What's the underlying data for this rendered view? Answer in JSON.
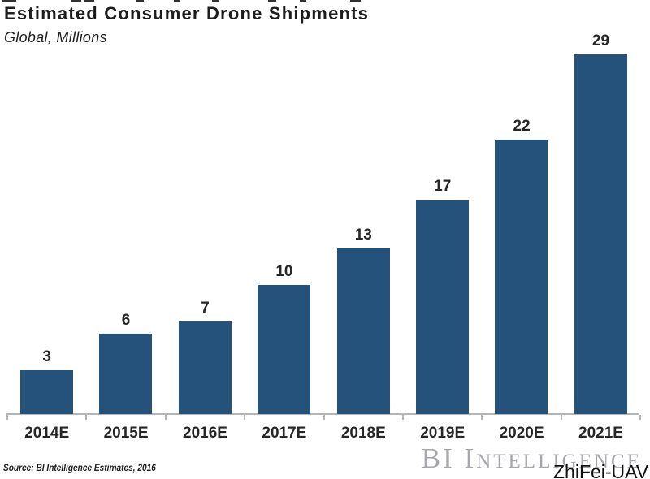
{
  "chart_data": {
    "type": "bar",
    "title": "Estimated Consumer Drone Shipments",
    "subtitle": "Global, Millions",
    "categories": [
      "2014E",
      "2015E",
      "2016E",
      "2017E",
      "2018E",
      "2019E",
      "2020E",
      "2021E"
    ],
    "values": [
      3,
      6,
      7,
      10,
      13,
      17,
      22,
      29
    ],
    "xlabel": "",
    "ylabel": "",
    "ylim": [
      0,
      30
    ],
    "grid": false,
    "legend": false,
    "data_labels": true,
    "bar_color": "#25527A",
    "axis_color": "#B3B6B8",
    "label_color": "#262626"
  },
  "footer": {
    "source": "Source: BI Intelligence Estimates, 2016",
    "watermark": "BI Intelligence",
    "overlay_label": "ZhiFei-UAV"
  },
  "artifacts": {
    "top_edge_marks": [
      [
        3,
        17
      ],
      [
        88,
        12
      ],
      [
        104,
        12
      ],
      [
        168,
        9
      ],
      [
        214,
        8
      ],
      [
        261,
        9
      ],
      [
        330,
        10
      ],
      [
        369,
        8
      ],
      [
        431,
        13
      ]
    ]
  }
}
